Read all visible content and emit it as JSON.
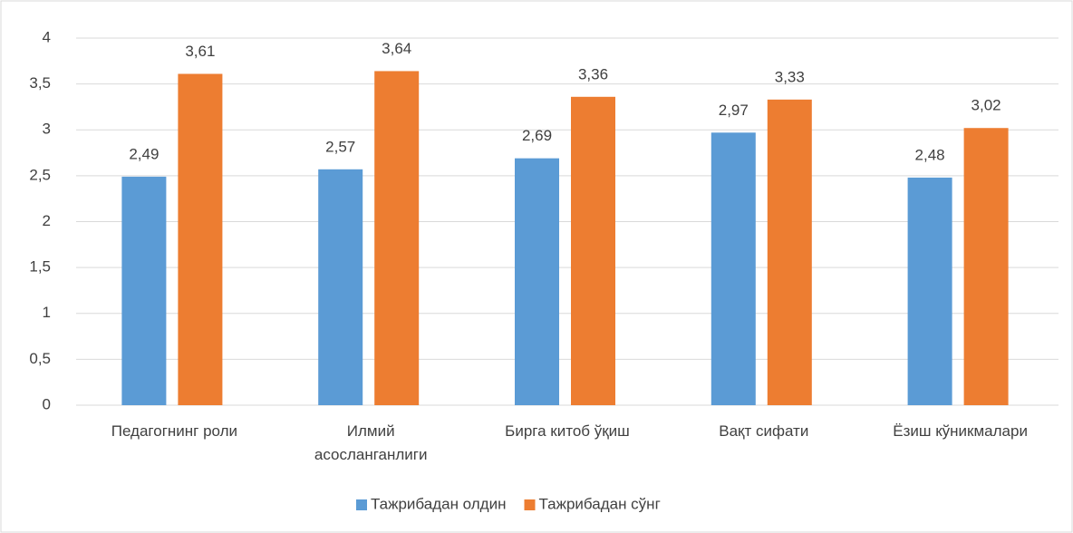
{
  "chart_data": {
    "type": "bar",
    "categories": [
      "Педагогнинг роли",
      "Илмий асосланганлиги",
      "Бирга китоб ўқиш",
      "Вақт сифати",
      "Ёзиш кўникмалари"
    ],
    "series": [
      {
        "name": "Тажрибадан олдин",
        "color": "#5b9bd5",
        "values": [
          2.49,
          2.57,
          2.69,
          2.97,
          2.48
        ],
        "value_labels": [
          "2,49",
          "2,57",
          "2,69",
          "2,97",
          "2,48"
        ]
      },
      {
        "name": "Тажрибадан сўнг",
        "color": "#ed7d31",
        "values": [
          3.61,
          3.64,
          3.36,
          3.33,
          3.02
        ],
        "value_labels": [
          "3,61",
          "3,64",
          "3,36",
          "3,33",
          "3,02"
        ]
      }
    ],
    "ylim": [
      0,
      4
    ],
    "yticks": [
      0,
      {
        "value": 0.5,
        "label": "0,5"
      },
      1,
      {
        "value": 1.5,
        "label": "1,5"
      },
      2,
      {
        "value": 2.5,
        "label": "2,5"
      },
      3,
      {
        "value": 3.5,
        "label": "3,5"
      },
      4
    ],
    "grid": true,
    "legend": "bottom"
  }
}
